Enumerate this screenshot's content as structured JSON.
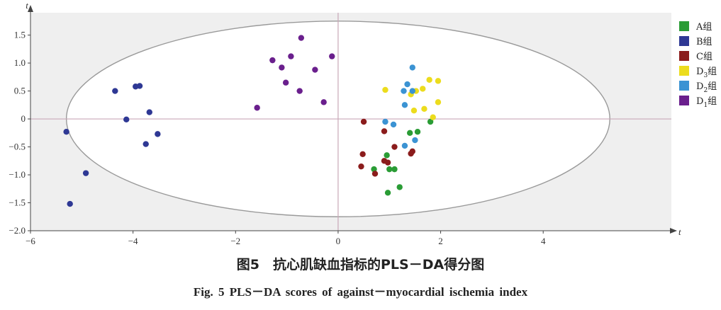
{
  "chart_data": {
    "type": "scatter",
    "xlabel": "t",
    "ylabel": "t",
    "xlim": [
      -6,
      6.5
    ],
    "ylim": [
      -2.0,
      1.9
    ],
    "x_ticks": [
      "−6",
      "−4",
      "−2",
      "0",
      "2",
      "4"
    ],
    "x_tick_values": [
      -6,
      -4,
      -2,
      0,
      2,
      4
    ],
    "y_ticks": [
      "1.5",
      "1.0",
      "0.5",
      "0",
      "−0.5",
      "−1.0",
      "−1.5",
      "−2.0"
    ],
    "y_tick_values": [
      1.5,
      1.0,
      0.5,
      0,
      -0.5,
      -1.0,
      -1.5,
      -2.0
    ],
    "ellipse": {
      "cx": 0,
      "cy": 0,
      "rx": 5.3,
      "ry": 1.75
    },
    "grid": false,
    "legend_position": "right",
    "series": [
      {
        "name": "A组",
        "label_main": "A组",
        "label_sub": "",
        "label_tail": "",
        "color": "#2a9c35",
        "points": [
          [
            1.8,
            -0.05
          ],
          [
            1.4,
            -0.25
          ],
          [
            1.55,
            -0.23
          ],
          [
            0.95,
            -0.65
          ],
          [
            0.7,
            -0.9
          ],
          [
            1.0,
            -0.9
          ],
          [
            1.1,
            -0.9
          ],
          [
            1.2,
            -1.22
          ],
          [
            0.97,
            -1.32
          ]
        ]
      },
      {
        "name": "B组",
        "label_main": "B组",
        "label_sub": "",
        "label_tail": "",
        "color": "#2e3894",
        "points": [
          [
            -4.35,
            0.5
          ],
          [
            -3.95,
            0.58
          ],
          [
            -3.87,
            0.59
          ],
          [
            -3.68,
            0.12
          ],
          [
            -4.13,
            -0.01
          ],
          [
            -5.3,
            -0.23
          ],
          [
            -3.52,
            -0.27
          ],
          [
            -3.75,
            -0.45
          ],
          [
            -4.92,
            -0.97
          ],
          [
            -5.23,
            -1.52
          ]
        ]
      },
      {
        "name": "C组",
        "label_main": "C组",
        "label_sub": "",
        "label_tail": "",
        "color": "#8b1c1c",
        "points": [
          [
            0.5,
            -0.05
          ],
          [
            0.9,
            -0.22
          ],
          [
            1.1,
            -0.5
          ],
          [
            0.48,
            -0.63
          ],
          [
            0.9,
            -0.75
          ],
          [
            0.97,
            -0.78
          ],
          [
            0.45,
            -0.85
          ],
          [
            0.72,
            -0.98
          ],
          [
            1.42,
            -0.62
          ],
          [
            1.45,
            -0.58
          ]
        ]
      },
      {
        "name": "D3组",
        "label_main": "D",
        "label_sub": "3",
        "label_tail": "组",
        "color": "#ecdc1d",
        "points": [
          [
            0.92,
            0.52
          ],
          [
            1.42,
            0.44
          ],
          [
            1.52,
            0.5
          ],
          [
            1.65,
            0.54
          ],
          [
            1.78,
            0.7
          ],
          [
            1.95,
            0.68
          ],
          [
            1.95,
            0.3
          ],
          [
            1.68,
            0.18
          ],
          [
            1.48,
            0.15
          ],
          [
            1.85,
            0.03
          ]
        ]
      },
      {
        "name": "D2组",
        "label_main": "D",
        "label_sub": "2",
        "label_tail": "组",
        "color": "#3b93d3",
        "points": [
          [
            1.45,
            0.92
          ],
          [
            1.35,
            0.62
          ],
          [
            1.28,
            0.5
          ],
          [
            1.45,
            0.5
          ],
          [
            1.3,
            0.25
          ],
          [
            0.92,
            -0.05
          ],
          [
            1.08,
            -0.1
          ],
          [
            1.5,
            -0.38
          ],
          [
            1.3,
            -0.48
          ]
        ]
      },
      {
        "name": "D1组",
        "label_main": "D",
        "label_sub": "1",
        "label_tail": "组",
        "color": "#6a1f8d",
        "points": [
          [
            -0.72,
            1.45
          ],
          [
            -0.92,
            1.12
          ],
          [
            -0.12,
            1.12
          ],
          [
            -1.28,
            1.05
          ],
          [
            -1.1,
            0.92
          ],
          [
            -0.45,
            0.88
          ],
          [
            -1.02,
            0.65
          ],
          [
            -0.75,
            0.5
          ],
          [
            -0.28,
            0.3
          ],
          [
            -1.58,
            0.2
          ]
        ]
      }
    ]
  },
  "caption": {
    "cn": "图5　抗心肌缺血指标的PLS－DA得分图",
    "en": "Fig. 5   PLS－DA scores of against－myocardial ischemia index"
  }
}
